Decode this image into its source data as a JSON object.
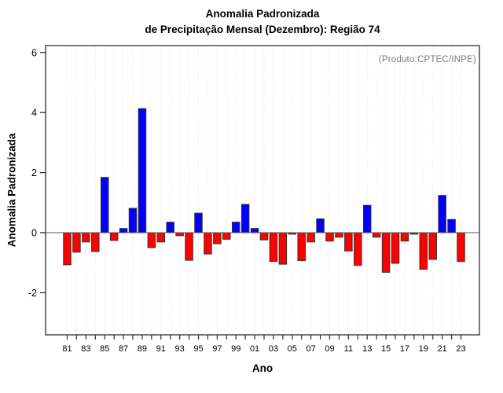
{
  "title": {
    "line1": "Anomalia Padronizada",
    "line2": "de Precipitação Mensal (Dezembro): Região 74"
  },
  "annotation": "(Produto:CPTEC/INPE)",
  "axes": {
    "xlabel": "Ano",
    "ylabel": "Anomalia Padronizada"
  },
  "chart_data": {
    "type": "bar",
    "title": "Anomalia Padronizada de Precipitação Mensal (Dezembro): Região 74",
    "xlabel": "Ano",
    "ylabel": "Anomalia Padronizada",
    "annotation": "(Produto:CPTEC/INPE)",
    "categories": [
      "81",
      "82",
      "83",
      "84",
      "85",
      "86",
      "87",
      "88",
      "89",
      "90",
      "91",
      "92",
      "93",
      "94",
      "95",
      "96",
      "97",
      "98",
      "99",
      "00",
      "01",
      "02",
      "03",
      "04",
      "05",
      "06",
      "07",
      "08",
      "09",
      "10",
      "11",
      "12",
      "13",
      "14",
      "15",
      "16",
      "17",
      "18",
      "19",
      "20",
      "21",
      "22",
      "23"
    ],
    "values": [
      -1.07,
      -0.65,
      -0.31,
      -0.63,
      1.84,
      -0.26,
      0.14,
      0.81,
      4.13,
      -0.5,
      -0.31,
      0.35,
      -0.1,
      -0.92,
      0.65,
      -0.71,
      -0.37,
      -0.22,
      0.35,
      0.94,
      0.14,
      -0.24,
      -0.96,
      -1.05,
      -0.05,
      -0.93,
      -0.31,
      0.46,
      -0.28,
      -0.15,
      -0.61,
      -1.09,
      0.91,
      -0.15,
      -1.32,
      -1.02,
      -0.28,
      -0.05,
      -1.22,
      -0.89,
      1.24,
      0.44,
      -0.96
    ],
    "xtick_labels_shown": [
      "81",
      "83",
      "85",
      "87",
      "89",
      "91",
      "93",
      "95",
      "97",
      "99",
      "01",
      "03",
      "05",
      "07",
      "09",
      "11",
      "13",
      "15",
      "17",
      "19",
      "21",
      "23"
    ],
    "yticks": [
      -2,
      0,
      2,
      4,
      6
    ],
    "ylim": [
      -3.4,
      6.2
    ],
    "grid": "vertical dotted line at every year",
    "legend": "none",
    "zero_line": true,
    "colors": {
      "positive": "#0000ff",
      "negative": "#ff0000",
      "bar_border": "#333333",
      "grid": "#d9d9d9",
      "zero_line": "#555555",
      "axis_frame": "#2e2e2e",
      "annotation_text": "#7d7d7d"
    }
  }
}
